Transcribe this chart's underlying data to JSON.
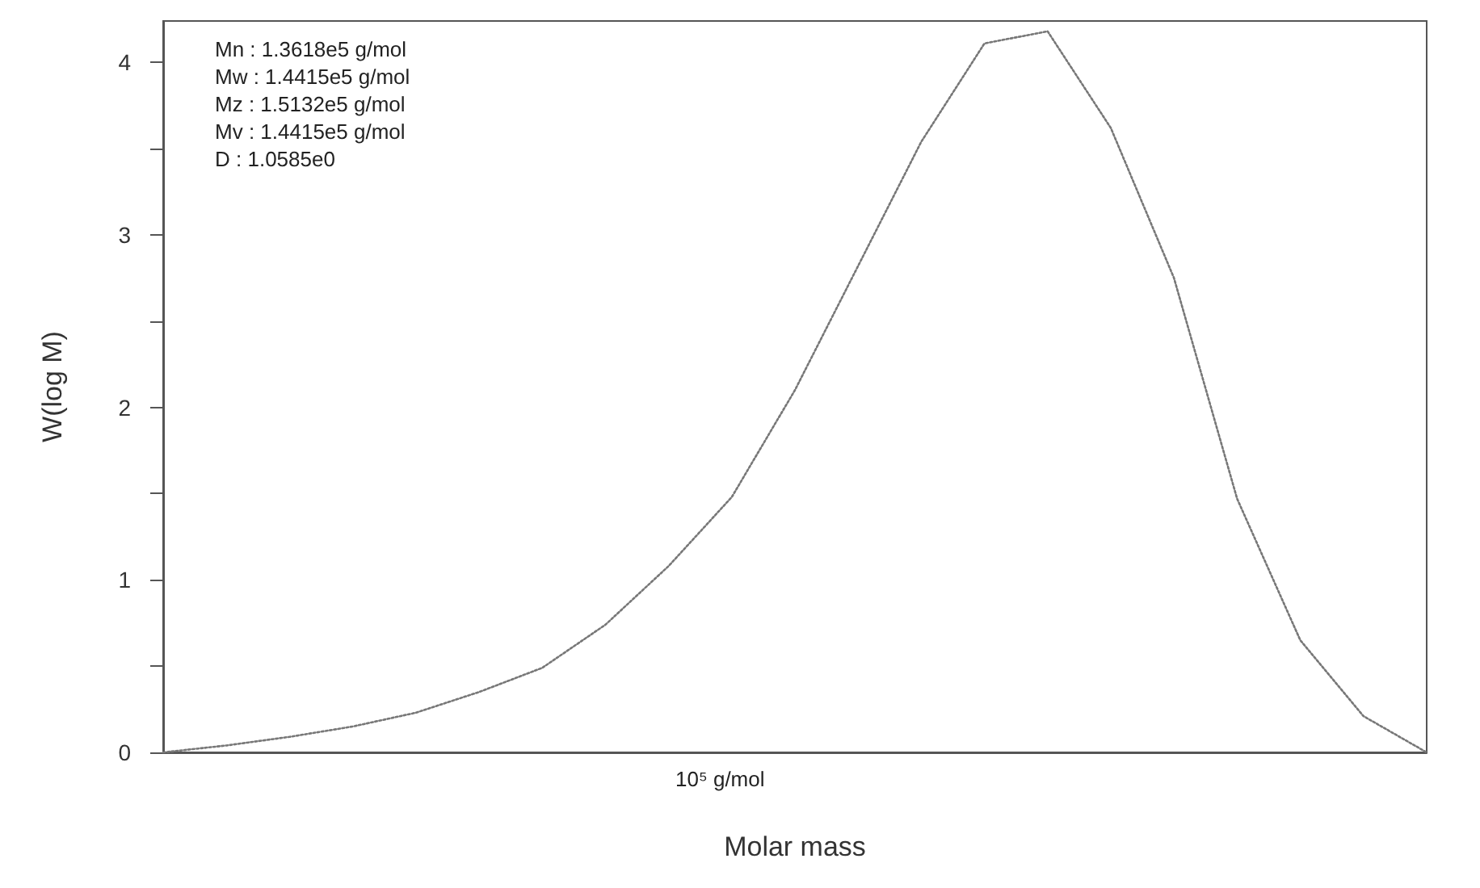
{
  "chart_data": {
    "type": "line",
    "xlabel": "Molar mass",
    "ylabel": "W(log M)",
    "annotations": [
      "Mn : 1.3618e5 g/mol",
      "Mw : 1.4415e5 g/mol",
      "Mz : 1.5132e5 g/mol",
      "Mv : 1.4415e5 g/mol",
      "D : 1.0585e0",
      "10⁵ g/mol"
    ],
    "ylim": [
      0,
      4.24
    ],
    "yticks": [
      0,
      {
        "value": 0.5,
        "label": null
      },
      1,
      {
        "value": 1.5,
        "label": null
      },
      2,
      {
        "value": 2.5,
        "label": null
      },
      3,
      {
        "value": 3.5,
        "label": null
      },
      4
    ],
    "grid": false,
    "marker": "none",
    "line_style": "dotted",
    "categories": [
      null,
      null,
      null,
      null,
      null,
      null,
      null,
      null,
      null,
      null,
      null,
      null,
      null,
      null,
      null,
      null,
      null,
      null,
      null,
      null,
      null
    ],
    "series": [
      {
        "color": "#777777",
        "values": [
          0,
          0.04,
          0.09,
          0.15,
          0.23,
          0.35,
          0.49,
          0.74,
          1.08,
          1.48,
          2.1,
          2.82,
          3.54,
          4.11,
          4.18,
          3.62,
          2.75,
          1.47,
          0.65,
          0.21,
          0
        ]
      }
    ]
  }
}
